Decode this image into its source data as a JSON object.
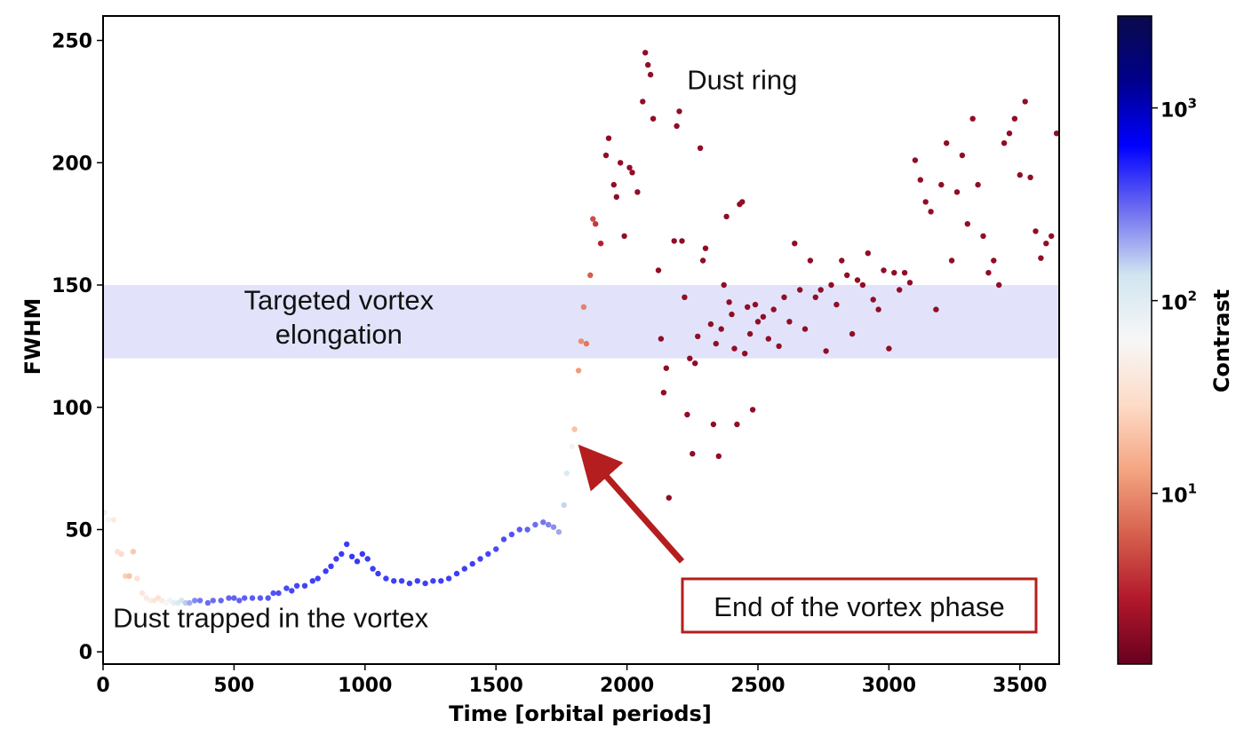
{
  "chart_data": {
    "type": "scatter",
    "xlabel": "Time [orbital periods]",
    "ylabel": "FWHM",
    "xlim": [
      0,
      3650
    ],
    "ylim": [
      -5,
      260
    ],
    "xticks": [
      0,
      500,
      1000,
      1500,
      2000,
      2500,
      3000,
      3500
    ],
    "yticks": [
      0,
      50,
      100,
      150,
      200,
      250
    ],
    "grid": false,
    "band": {
      "y_from": 120,
      "y_to": 150,
      "color": "#e2e3fa"
    },
    "colorbar": {
      "label": "Contrast",
      "scale": "log",
      "range": [
        1.3,
        3000
      ],
      "ticks": [
        {
          "value": 10,
          "label": "10",
          "exp": "1"
        },
        {
          "value": 100,
          "label": "10",
          "exp": "2"
        },
        {
          "value": 1000,
          "label": "10",
          "exp": "3"
        }
      ],
      "colormap": [
        "#67001f",
        "#b2182b",
        "#d6604d",
        "#f4a582",
        "#fddbc7",
        "#f7f7f7",
        "#d1e5f0",
        "#6f6ff0",
        "#0000ff",
        "#00008b",
        "#0a0a4a"
      ]
    },
    "annotations": [
      {
        "text": "Dust ring",
        "x": 2440,
        "y": 230
      },
      {
        "text": "Targeted vortex",
        "x": 900,
        "y": 140
      },
      {
        "text": "elongation",
        "x": 900,
        "y": 126
      },
      {
        "text": "Dust trapped in the vortex",
        "x": 640,
        "y": 10
      }
    ],
    "callout": {
      "text": "End of the vortex phase",
      "border_color": "#b41e1e",
      "arrow_from": [
        2210,
        37
      ],
      "arrow_to": [
        1845,
        81
      ]
    },
    "series": [
      {
        "points": [
          [
            5,
            57,
            80
          ],
          [
            20,
            54,
            60
          ],
          [
            40,
            54,
            45
          ],
          [
            55,
            41,
            35
          ],
          [
            70,
            40,
            30
          ],
          [
            85,
            31,
            25
          ],
          [
            100,
            31,
            20
          ],
          [
            115,
            41,
            22
          ],
          [
            130,
            30,
            35
          ],
          [
            150,
            24,
            40
          ],
          [
            165,
            22,
            45
          ],
          [
            180,
            21,
            50
          ],
          [
            195,
            21,
            40
          ],
          [
            210,
            22,
            35
          ],
          [
            225,
            21,
            45
          ],
          [
            240,
            20,
            60
          ],
          [
            255,
            21,
            70
          ],
          [
            270,
            20,
            90
          ],
          [
            285,
            20,
            110
          ],
          [
            300,
            21,
            130
          ],
          [
            315,
            20,
            160
          ],
          [
            330,
            20,
            200
          ],
          [
            350,
            21,
            250
          ],
          [
            370,
            21,
            280
          ],
          [
            400,
            20,
            300
          ],
          [
            420,
            21,
            300
          ],
          [
            450,
            21,
            310
          ],
          [
            480,
            22,
            320
          ],
          [
            500,
            22,
            320
          ],
          [
            520,
            21,
            320
          ],
          [
            540,
            22,
            330
          ],
          [
            570,
            22,
            340
          ],
          [
            600,
            22,
            340
          ],
          [
            630,
            22,
            350
          ],
          [
            650,
            24,
            360
          ],
          [
            670,
            24,
            370
          ],
          [
            700,
            26,
            380
          ],
          [
            720,
            25,
            390
          ],
          [
            740,
            27,
            390
          ],
          [
            770,
            27,
            400
          ],
          [
            800,
            29,
            410
          ],
          [
            820,
            30,
            410
          ],
          [
            850,
            33,
            420
          ],
          [
            870,
            35,
            420
          ],
          [
            890,
            38,
            420
          ],
          [
            910,
            40,
            420
          ],
          [
            930,
            44,
            420
          ],
          [
            950,
            39,
            430
          ],
          [
            970,
            37,
            430
          ],
          [
            990,
            40,
            430
          ],
          [
            1010,
            38,
            420
          ],
          [
            1030,
            34,
            420
          ],
          [
            1050,
            32,
            420
          ],
          [
            1080,
            30,
            410
          ],
          [
            1110,
            29,
            410
          ],
          [
            1140,
            29,
            410
          ],
          [
            1170,
            28,
            410
          ],
          [
            1200,
            29,
            410
          ],
          [
            1230,
            28,
            410
          ],
          [
            1260,
            29,
            410
          ],
          [
            1290,
            29,
            410
          ],
          [
            1320,
            30,
            410
          ],
          [
            1350,
            32,
            410
          ],
          [
            1380,
            34,
            410
          ],
          [
            1410,
            36,
            410
          ],
          [
            1440,
            38,
            400
          ],
          [
            1470,
            40,
            390
          ],
          [
            1500,
            42,
            380
          ],
          [
            1530,
            46,
            370
          ],
          [
            1560,
            48,
            360
          ],
          [
            1590,
            50,
            340
          ],
          [
            1620,
            50,
            320
          ],
          [
            1650,
            52,
            300
          ],
          [
            1680,
            53,
            280
          ],
          [
            1700,
            52,
            260
          ],
          [
            1720,
            51,
            240
          ],
          [
            1740,
            49,
            200
          ],
          [
            1760,
            60,
            150
          ],
          [
            1770,
            73,
            110
          ],
          [
            1790,
            84,
            70
          ],
          [
            1800,
            91,
            20
          ],
          [
            1815,
            115,
            12
          ],
          [
            1825,
            127,
            10
          ],
          [
            1835,
            141,
            9
          ],
          [
            1845,
            126,
            8
          ],
          [
            1860,
            154,
            6
          ],
          [
            1870,
            177,
            5
          ],
          [
            1880,
            175,
            4
          ],
          [
            1900,
            167,
            3
          ],
          [
            1920,
            203,
            2
          ],
          [
            1930,
            210,
            2
          ],
          [
            1950,
            191,
            2
          ],
          [
            1960,
            186,
            2
          ],
          [
            1975,
            200,
            2
          ],
          [
            1990,
            170,
            2
          ],
          [
            2010,
            198,
            2
          ],
          [
            2020,
            196,
            2
          ],
          [
            2040,
            188,
            2
          ],
          [
            2060,
            225,
            2
          ],
          [
            2070,
            245,
            2
          ],
          [
            2080,
            240,
            2
          ],
          [
            2090,
            236,
            2
          ],
          [
            2100,
            218,
            2
          ],
          [
            2120,
            156,
            2
          ],
          [
            2130,
            128,
            2
          ],
          [
            2140,
            106,
            2
          ],
          [
            2150,
            116,
            2
          ],
          [
            2160,
            63,
            2
          ],
          [
            2180,
            168,
            2
          ],
          [
            2190,
            215,
            2
          ],
          [
            2200,
            221,
            2
          ],
          [
            2210,
            168,
            2
          ],
          [
            2220,
            145,
            2
          ],
          [
            2230,
            97,
            2
          ],
          [
            2240,
            120,
            2
          ],
          [
            2250,
            81,
            2
          ],
          [
            2260,
            118,
            2
          ],
          [
            2270,
            129,
            2
          ],
          [
            2280,
            206,
            2
          ],
          [
            2290,
            160,
            2
          ],
          [
            2300,
            165,
            2
          ],
          [
            2320,
            134,
            2
          ],
          [
            2330,
            93,
            2
          ],
          [
            2340,
            126,
            2
          ],
          [
            2350,
            80,
            2
          ],
          [
            2360,
            132,
            2
          ],
          [
            2370,
            150,
            2
          ],
          [
            2380,
            178,
            2
          ],
          [
            2390,
            143,
            2
          ],
          [
            2400,
            138,
            2
          ],
          [
            2410,
            124,
            2
          ],
          [
            2420,
            93,
            2
          ],
          [
            2430,
            183,
            2
          ],
          [
            2440,
            184,
            2
          ],
          [
            2450,
            122,
            2
          ],
          [
            2460,
            141,
            2
          ],
          [
            2470,
            130,
            2
          ],
          [
            2480,
            99,
            2
          ],
          [
            2490,
            142,
            2
          ],
          [
            2500,
            135,
            2
          ],
          [
            2520,
            137,
            2
          ],
          [
            2540,
            128,
            2
          ],
          [
            2560,
            140,
            2
          ],
          [
            2580,
            125,
            2
          ],
          [
            2600,
            145,
            2
          ],
          [
            2620,
            135,
            2
          ],
          [
            2640,
            167,
            2
          ],
          [
            2660,
            148,
            2
          ],
          [
            2680,
            132,
            2
          ],
          [
            2700,
            160,
            2
          ],
          [
            2720,
            145,
            2
          ],
          [
            2740,
            148,
            2
          ],
          [
            2760,
            123,
            2
          ],
          [
            2780,
            150,
            2
          ],
          [
            2800,
            142,
            2
          ],
          [
            2820,
            160,
            2
          ],
          [
            2840,
            154,
            2
          ],
          [
            2860,
            130,
            2
          ],
          [
            2880,
            152,
            2
          ],
          [
            2900,
            150,
            2
          ],
          [
            2920,
            163,
            2
          ],
          [
            2940,
            144,
            2
          ],
          [
            2960,
            140,
            2
          ],
          [
            2980,
            156,
            2
          ],
          [
            3000,
            124,
            2
          ],
          [
            3020,
            155,
            2
          ],
          [
            3040,
            148,
            2
          ],
          [
            3060,
            155,
            2
          ],
          [
            3080,
            151,
            2
          ],
          [
            3100,
            201,
            2
          ],
          [
            3120,
            193,
            2
          ],
          [
            3140,
            184,
            2
          ],
          [
            3160,
            180,
            2
          ],
          [
            3180,
            140,
            2
          ],
          [
            3200,
            191,
            2
          ],
          [
            3220,
            208,
            2
          ],
          [
            3240,
            160,
            2
          ],
          [
            3260,
            188,
            2
          ],
          [
            3280,
            203,
            2
          ],
          [
            3300,
            175,
            2
          ],
          [
            3320,
            218,
            2
          ],
          [
            3340,
            191,
            2
          ],
          [
            3360,
            170,
            2
          ],
          [
            3380,
            155,
            2
          ],
          [
            3400,
            160,
            2
          ],
          [
            3420,
            150,
            2
          ],
          [
            3440,
            208,
            2
          ],
          [
            3460,
            212,
            2
          ],
          [
            3480,
            218,
            2
          ],
          [
            3500,
            195,
            2
          ],
          [
            3520,
            225,
            2
          ],
          [
            3540,
            194,
            2
          ],
          [
            3560,
            172,
            2
          ],
          [
            3580,
            161,
            2
          ],
          [
            3600,
            167,
            2
          ],
          [
            3620,
            170,
            2
          ],
          [
            3640,
            212,
            2
          ]
        ]
      }
    ]
  }
}
